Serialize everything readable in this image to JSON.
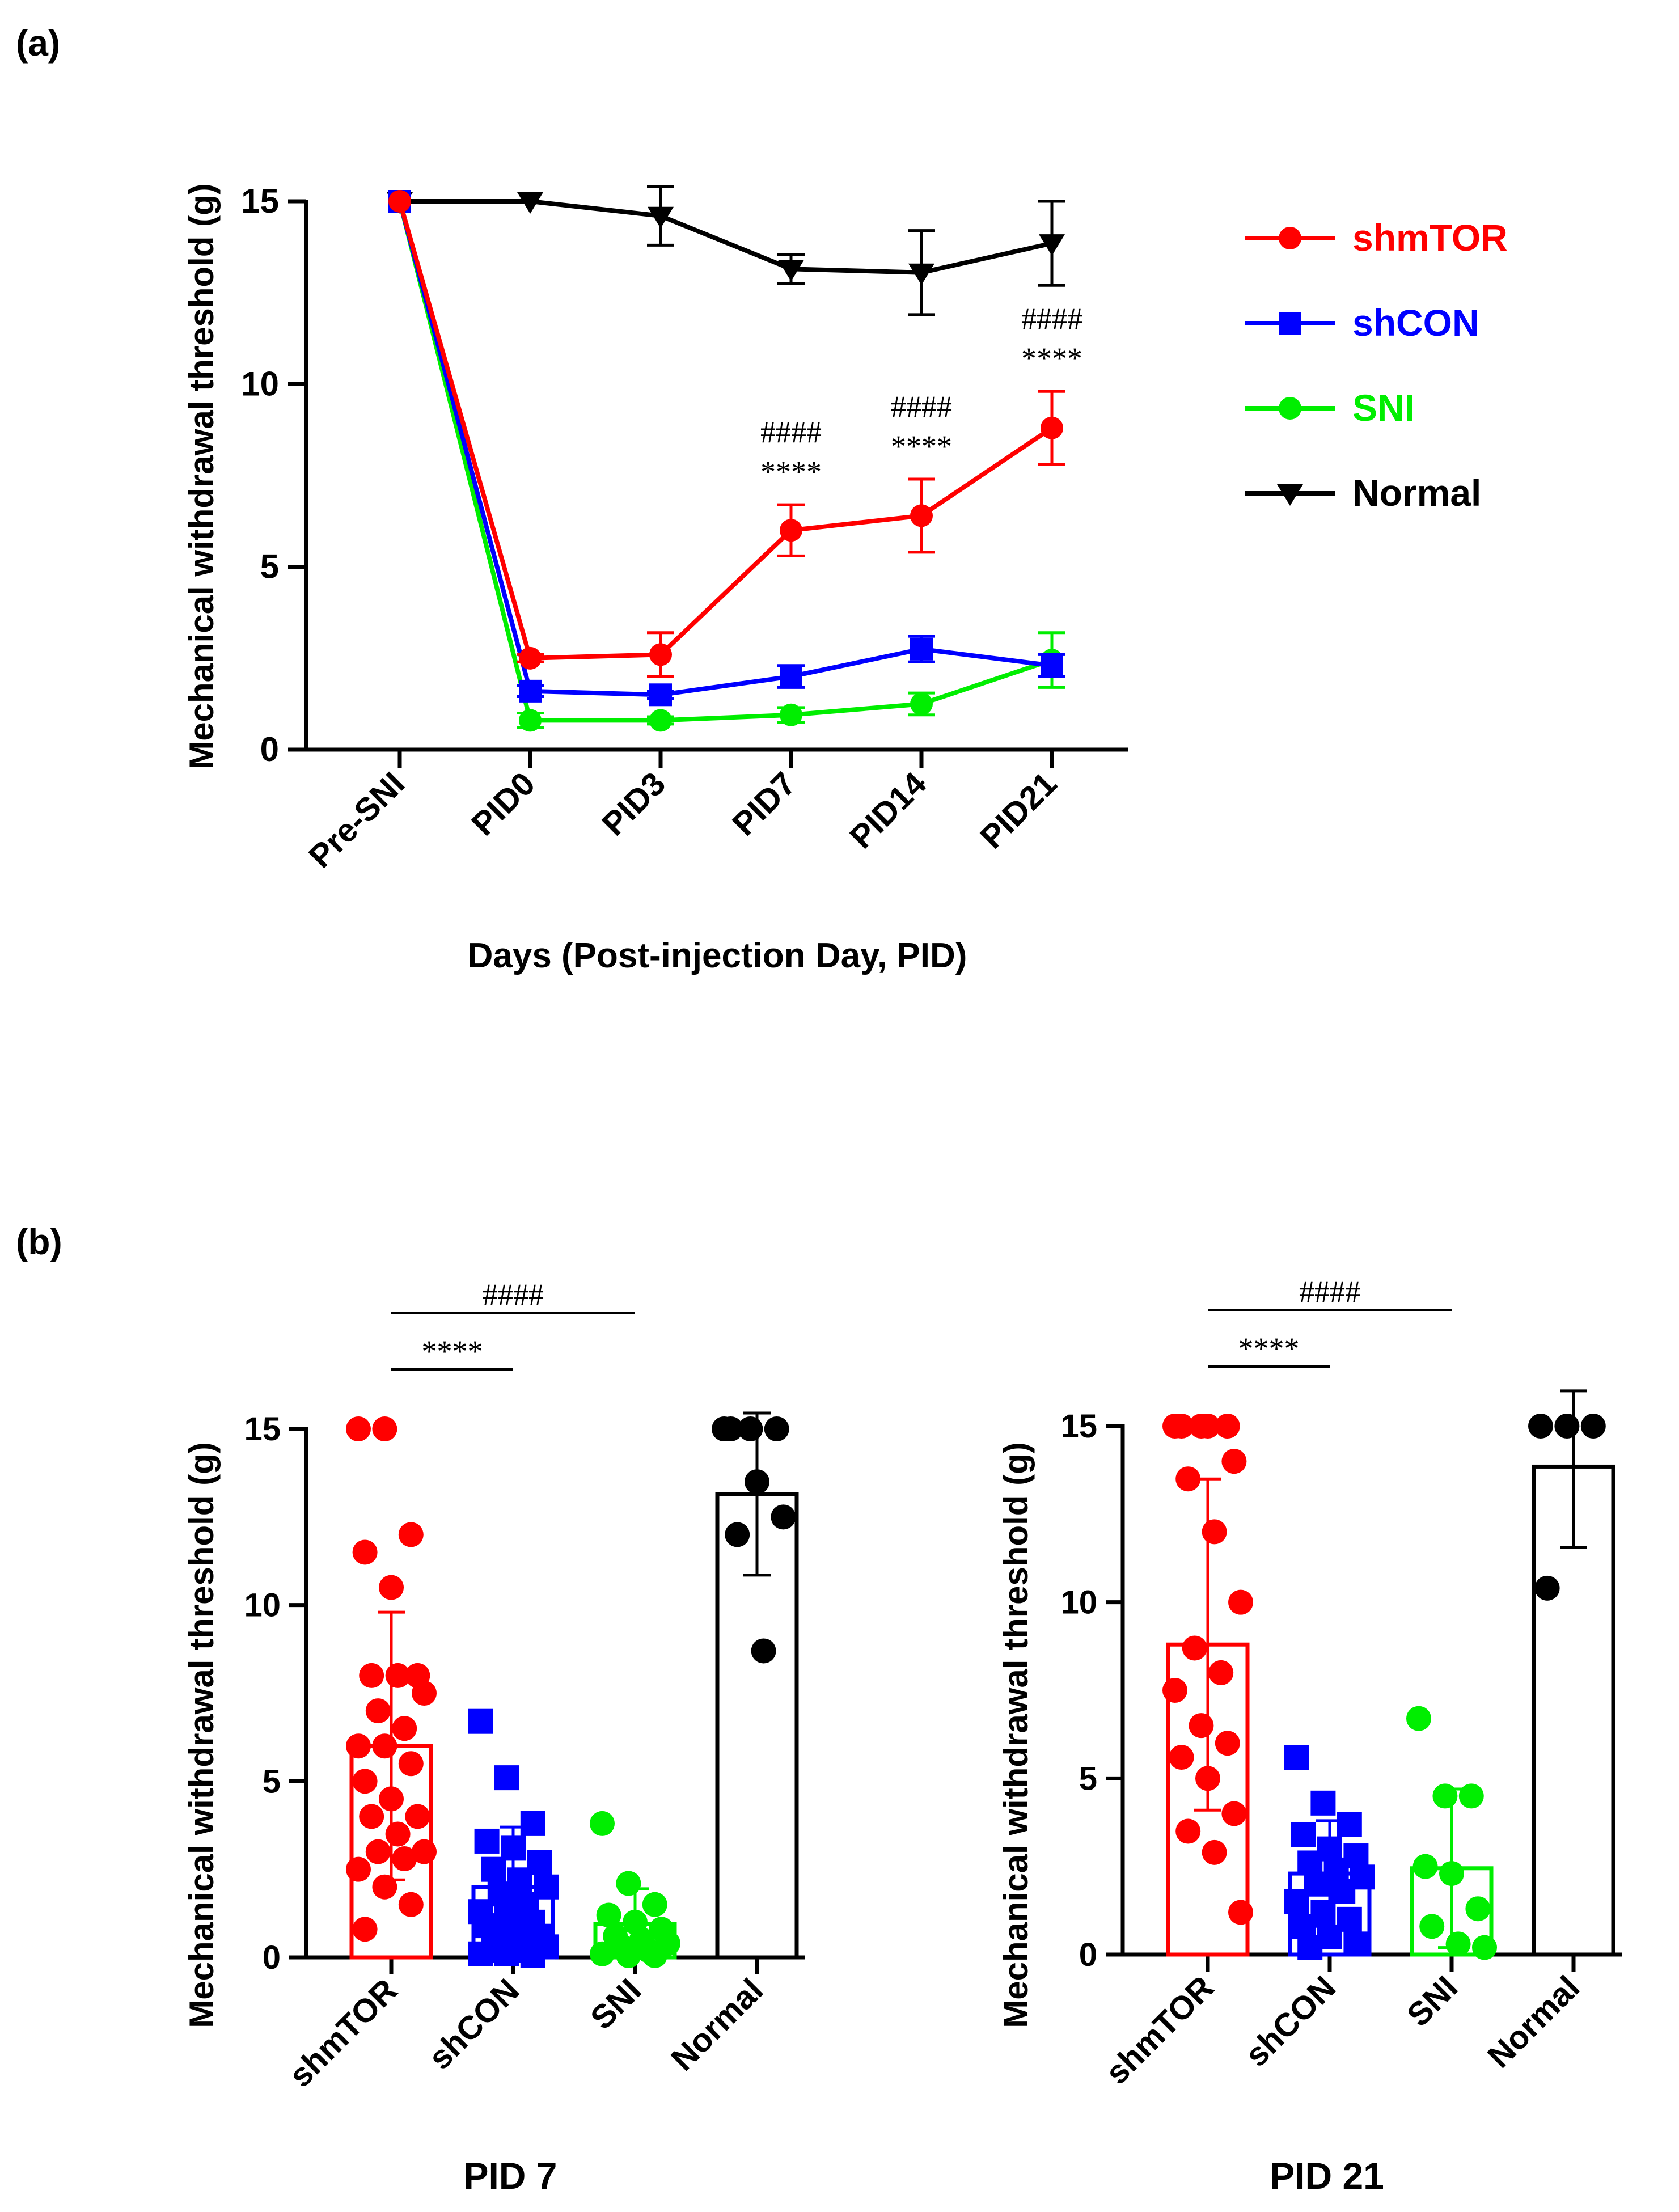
{
  "figure": {
    "panel_a_label": "(a)",
    "panel_b_label": "(b)"
  },
  "chart_data": [
    {
      "type": "line",
      "panel": "(a)",
      "title": "",
      "ylabel": "Mechanical withdrawal threshold (g)",
      "xlabel": "Days (Post-injection Day,  PID)",
      "categories": [
        "Pre-SNI",
        "PID0",
        "PID3",
        "PID7",
        "PID14",
        "PID21"
      ],
      "ylim": [
        0,
        15
      ],
      "yticks": [
        0,
        5,
        10,
        15
      ],
      "series": [
        {
          "name": "shmTOR",
          "color": "#ff0000",
          "marker": "circle",
          "values": [
            15,
            2.5,
            2.6,
            6.0,
            6.4,
            8.8
          ],
          "err": [
            0,
            0.1,
            0.6,
            0.7,
            1.0,
            1.0
          ]
        },
        {
          "name": "shCON",
          "color": "#0000ff",
          "marker": "square",
          "values": [
            15,
            1.6,
            1.5,
            2.0,
            2.75,
            2.3
          ],
          "err": [
            0,
            0.15,
            0.1,
            0.3,
            0.35,
            0.3
          ]
        },
        {
          "name": "SNI",
          "color": "#00ee00",
          "marker": "circle",
          "values": [
            15,
            0.8,
            0.8,
            0.95,
            1.25,
            2.45
          ],
          "err": [
            0,
            0.2,
            0.1,
            0.2,
            0.3,
            0.75
          ]
        },
        {
          "name": "Normal",
          "color": "#000000",
          "marker": "triangle-down",
          "values": [
            15,
            15,
            14.6,
            13.15,
            13.05,
            13.85
          ],
          "err": [
            0,
            0,
            0.8,
            0.4,
            1.15,
            1.15
          ]
        }
      ],
      "annotations": [
        {
          "category": "PID7",
          "stars": "****",
          "hashes": "####"
        },
        {
          "category": "PID14",
          "stars": "****",
          "hashes": "####"
        },
        {
          "category": "PID21",
          "stars": "****",
          "hashes": "####"
        }
      ],
      "legend": {
        "position": "right"
      }
    },
    {
      "type": "bar",
      "panel": "(b)",
      "title": "PID 7",
      "ylabel": "Mechanical withdrawal threshold (g)",
      "xlabel": "",
      "categories": [
        "shmTOR",
        "shCON",
        "SNI",
        "Normal"
      ],
      "colors": [
        "#ff0000",
        "#0000ff",
        "#00ee00",
        "#000000"
      ],
      "markers": [
        "circle",
        "square",
        "circle",
        "circle"
      ],
      "values": [
        6.0,
        2.0,
        0.95,
        13.15
      ],
      "err": [
        3.8,
        1.7,
        1.0,
        2.3
      ],
      "ylim": [
        0,
        15
      ],
      "yticks": [
        0,
        5,
        10,
        15
      ],
      "points": [
        [
          15,
          15,
          12,
          11.5,
          10.5,
          8,
          8,
          8,
          7.5,
          7,
          6.5,
          6,
          6,
          5.5,
          5,
          4.5,
          4,
          4,
          3.5,
          3,
          3,
          2.8,
          2.5,
          2,
          1.5,
          0.8
        ],
        [
          6.7,
          5.1,
          3.8,
          3.3,
          3.1,
          2.7,
          2.5,
          2.2,
          2,
          1.8,
          1.5,
          1.3,
          1.2,
          1,
          0.9,
          0.8,
          0.6,
          0.5,
          0.4,
          0.3,
          0.2,
          0.2,
          0.1,
          0.1,
          0.05
        ],
        [
          3.8,
          2.1,
          1.5,
          1.2,
          1,
          0.8,
          0.6,
          0.5,
          0.4,
          0.3,
          0.2,
          0.1,
          0.05,
          0.05
        ],
        [
          15,
          15,
          15,
          15,
          13.5,
          12.5,
          12,
          8.7
        ]
      ],
      "significance": [
        {
          "from": "shmTOR",
          "to": "shCON",
          "label": "****"
        },
        {
          "from": "shmTOR",
          "to": "SNI",
          "label": "####"
        }
      ]
    },
    {
      "type": "bar",
      "panel": "(b)",
      "title": "PID 21",
      "ylabel": "Mechanical withdrawal threshold (g)",
      "xlabel": "",
      "categories": [
        "shmTOR",
        "shCON",
        "SNI",
        "Normal"
      ],
      "colors": [
        "#ff0000",
        "#0000ff",
        "#00ee00",
        "#000000"
      ],
      "markers": [
        "circle",
        "square",
        "circle",
        "circle"
      ],
      "values": [
        8.8,
        2.3,
        2.45,
        13.85
      ],
      "err": [
        4.7,
        1.5,
        2.25,
        2.3
      ],
      "ylim": [
        0,
        15
      ],
      "yticks": [
        0,
        5,
        10,
        15
      ],
      "points": [
        [
          15,
          15,
          15,
          15,
          15,
          14,
          13.5,
          12,
          10,
          8.7,
          8,
          7.5,
          6.5,
          6,
          5.6,
          5,
          4,
          3.5,
          2.9,
          1.2
        ],
        [
          5.6,
          4.3,
          3.7,
          3.4,
          3,
          2.8,
          2.6,
          2.4,
          2.2,
          2,
          1.8,
          1.5,
          1.2,
          1,
          0.8,
          0.5,
          0.3,
          0.2
        ],
        [
          6.7,
          4.5,
          4.5,
          2.5,
          2.3,
          1.3,
          0.8,
          0.3,
          0.2
        ],
        [
          15,
          15,
          15,
          10.4
        ]
      ],
      "significance": [
        {
          "from": "shmTOR",
          "to": "shCON",
          "label": "****"
        },
        {
          "from": "shmTOR",
          "to": "SNI",
          "label": "####"
        }
      ]
    }
  ]
}
